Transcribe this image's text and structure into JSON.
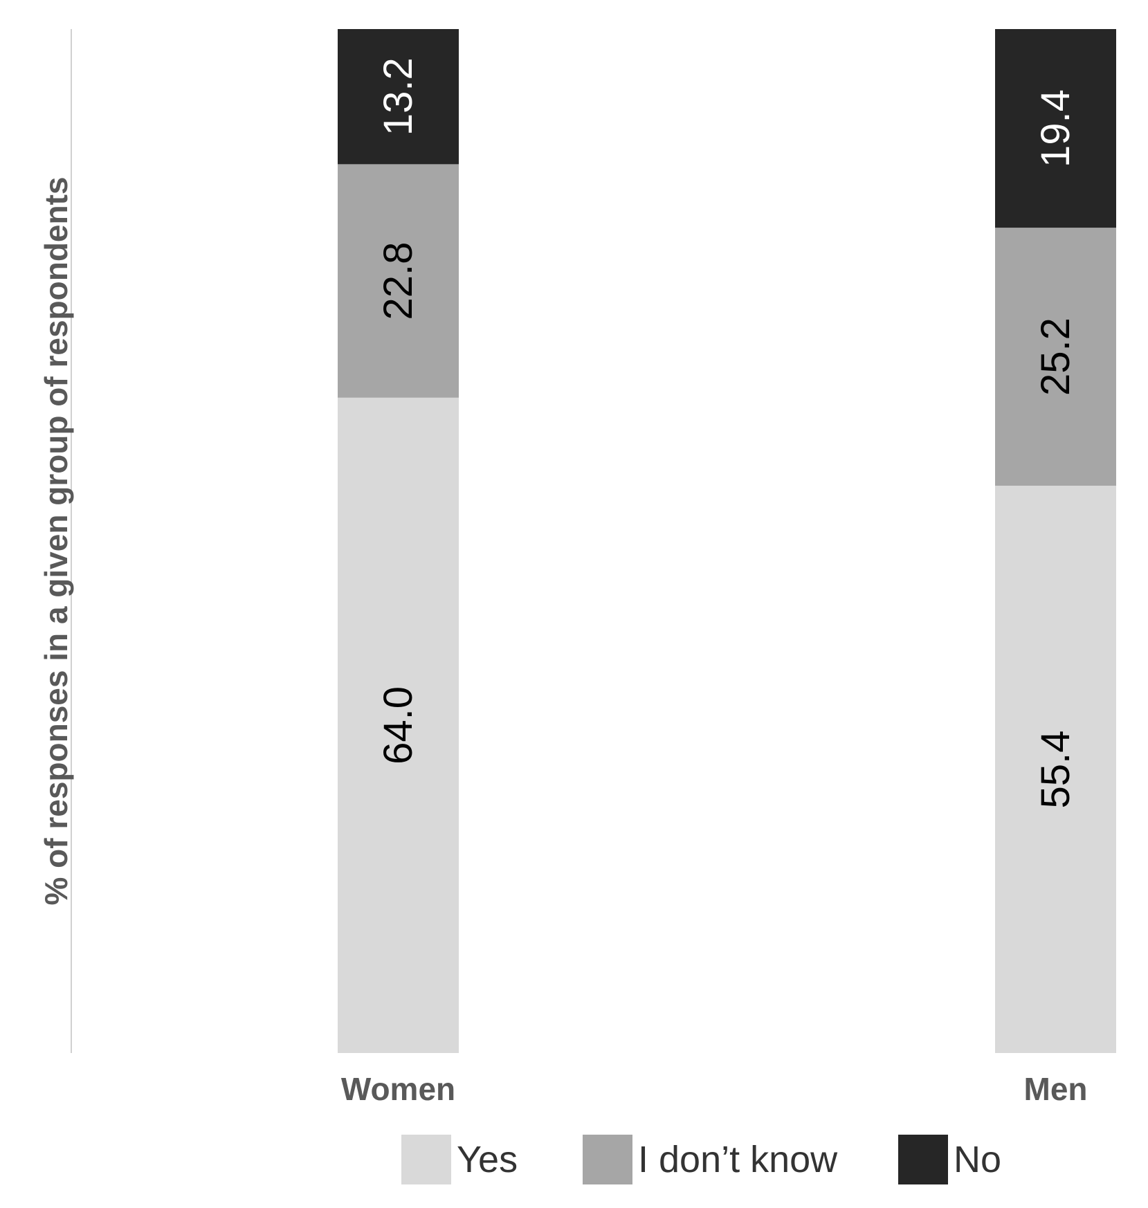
{
  "chart_data": {
    "type": "bar",
    "stacked": true,
    "ylabel": "% of responses in a given group of respondents",
    "ylim": [
      0,
      100
    ],
    "grid": false,
    "categories": [
      "Women",
      "Men"
    ],
    "series": [
      {
        "name": "Yes",
        "values": [
          64.0,
          55.4
        ],
        "color": "#d9d9d9",
        "label_color": "#000000"
      },
      {
        "name": "I don’t know",
        "values": [
          22.8,
          25.2
        ],
        "color": "#a6a6a6",
        "label_color": "#000000"
      },
      {
        "name": "No",
        "values": [
          13.2,
          19.4
        ],
        "color": "#262626",
        "label_color": "#ffffff"
      }
    ],
    "value_labels": [
      [
        "64.0",
        "55.4"
      ],
      [
        "22.8",
        "25.2"
      ],
      [
        "13.2",
        "19.4"
      ]
    ],
    "legend_position": "bottom"
  }
}
